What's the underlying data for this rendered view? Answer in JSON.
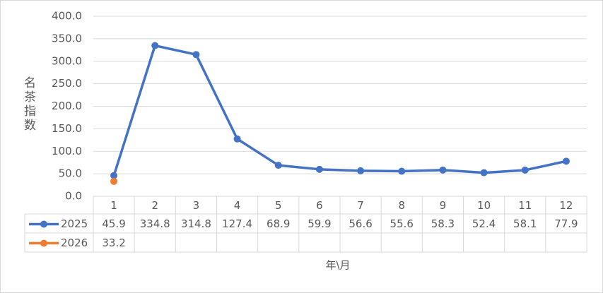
{
  "chart_data": {
    "type": "line",
    "y_label": "名茶指数",
    "x_label": "年\\月",
    "categories": [
      "1",
      "2",
      "3",
      "4",
      "5",
      "6",
      "7",
      "8",
      "9",
      "10",
      "11",
      "12"
    ],
    "series": [
      {
        "name": "2025",
        "color": "#4472c4",
        "values": [
          45.9,
          334.8,
          314.8,
          127.4,
          68.9,
          59.9,
          56.6,
          55.6,
          58.3,
          52.4,
          58.1,
          77.9
        ]
      },
      {
        "name": "2026",
        "color": "#ed7d31",
        "values": [
          33.2,
          null,
          null,
          null,
          null,
          null,
          null,
          null,
          null,
          null,
          null,
          null
        ]
      }
    ],
    "ylim": [
      0,
      400
    ],
    "yticks": [
      {
        "value": 0,
        "label": "0.0"
      },
      {
        "value": 50,
        "label": "50.0"
      },
      {
        "value": 100,
        "label": "100.0"
      },
      {
        "value": 150,
        "label": "150.0"
      },
      {
        "value": 200,
        "label": "200.0"
      },
      {
        "value": 250,
        "label": "250.0"
      },
      {
        "value": 300,
        "label": "300.0"
      },
      {
        "value": 350,
        "label": "350.0"
      },
      {
        "value": 400,
        "label": "400.0"
      }
    ],
    "grid": true
  }
}
